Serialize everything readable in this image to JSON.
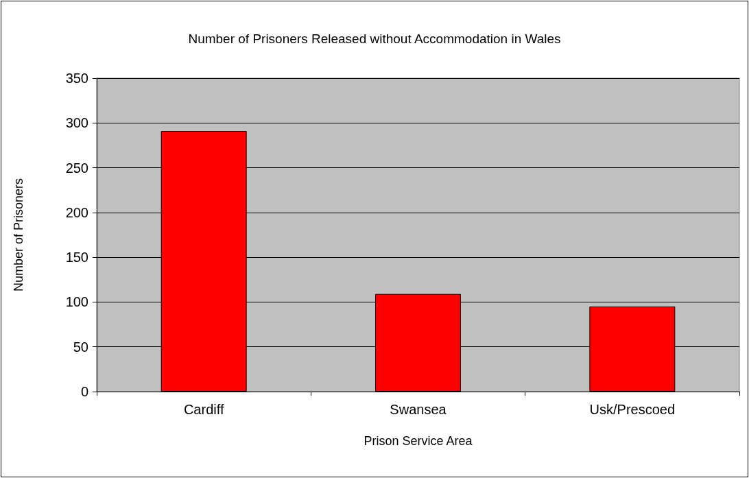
{
  "chart_data": {
    "type": "bar",
    "title": "Number of Prisoners Released without Accommodation in Wales",
    "xlabel": "Prison Service Area",
    "ylabel": "Number of Prisoners",
    "categories": [
      "Cardiff",
      "Swansea",
      "Usk/Prescoed"
    ],
    "values": [
      291,
      109,
      95
    ],
    "color": "#ff0000",
    "ylim": [
      0,
      350
    ],
    "yticks": [
      0,
      50,
      100,
      150,
      200,
      250,
      300,
      350
    ],
    "grid": "y"
  }
}
